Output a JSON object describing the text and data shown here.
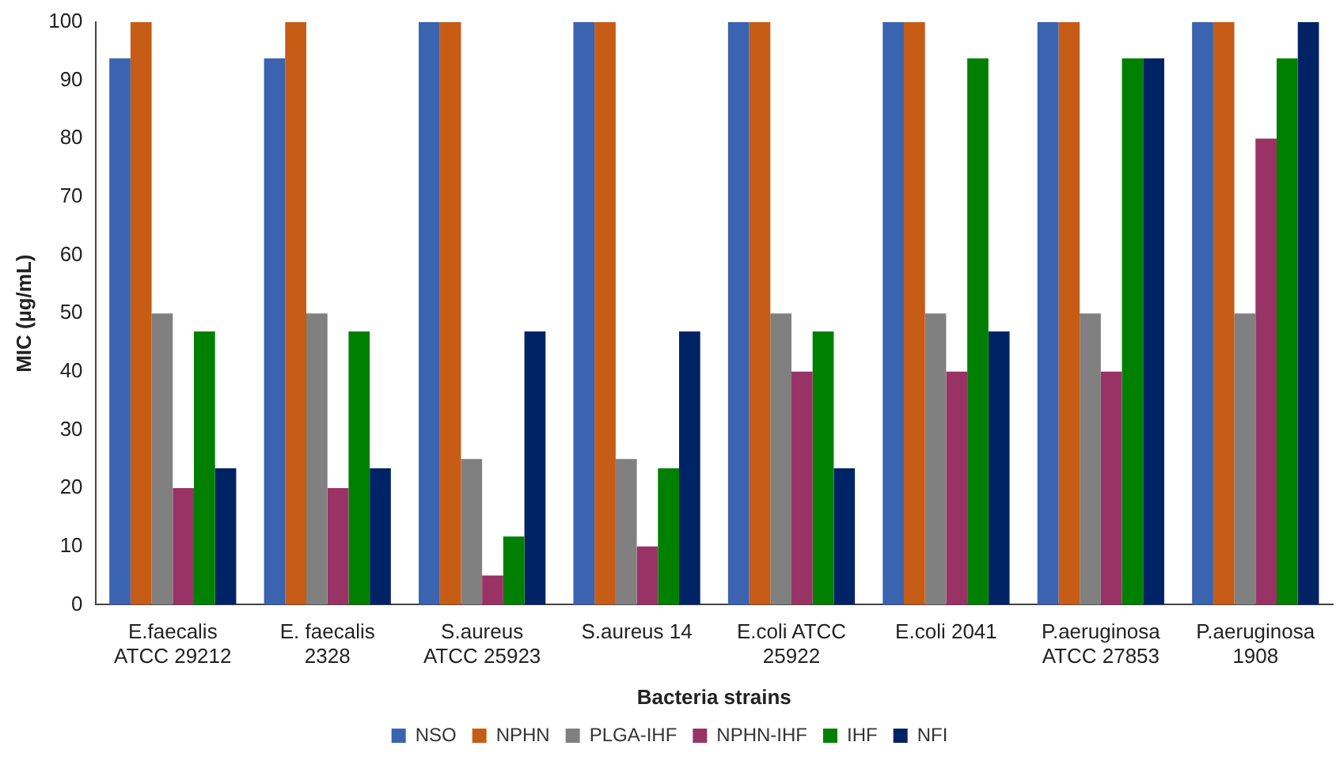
{
  "chart_data": {
    "type": "bar",
    "xlabel": "Bacteria strains",
    "ylabel": "MIC (µg/mL)",
    "categories": [
      "E.faecalis ATCC 29212",
      "E. faecalis 2328",
      "S.aureus ATCC 25923",
      "S.aureus 14",
      "E.coli ATCC 25922",
      "E.coli 2041",
      "P.aeruginosa ATCC 27853",
      "P.aeruginosa 1908"
    ],
    "series": [
      {
        "name": "NSO",
        "color": "#3a63b0",
        "values": [
          93.8,
          93.8,
          100,
          100,
          100,
          100,
          100,
          100
        ]
      },
      {
        "name": "NPHN",
        "color": "#c65c16",
        "values": [
          100,
          100,
          100,
          100,
          100,
          100,
          100,
          100
        ]
      },
      {
        "name": "PLGA-IHF",
        "color": "#808080",
        "values": [
          50,
          50,
          25,
          25,
          50,
          50,
          50,
          50
        ]
      },
      {
        "name": "NPHN-IHF",
        "color": "#993366",
        "values": [
          20,
          20,
          5,
          10,
          40,
          40,
          40,
          80
        ]
      },
      {
        "name": "IHF",
        "color": "#008000",
        "values": [
          46.9,
          46.9,
          11.7,
          23.4,
          46.9,
          93.8,
          93.8,
          93.8
        ]
      },
      {
        "name": "NFI",
        "color": "#002366",
        "values": [
          23.4,
          23.4,
          46.9,
          46.9,
          23.4,
          46.9,
          93.8,
          100
        ]
      }
    ],
    "ylim": [
      0,
      100
    ],
    "yticks": [
      0,
      10,
      20,
      30,
      40,
      50,
      60,
      70,
      80,
      90,
      100
    ],
    "grid": false,
    "legend": "bottom"
  }
}
